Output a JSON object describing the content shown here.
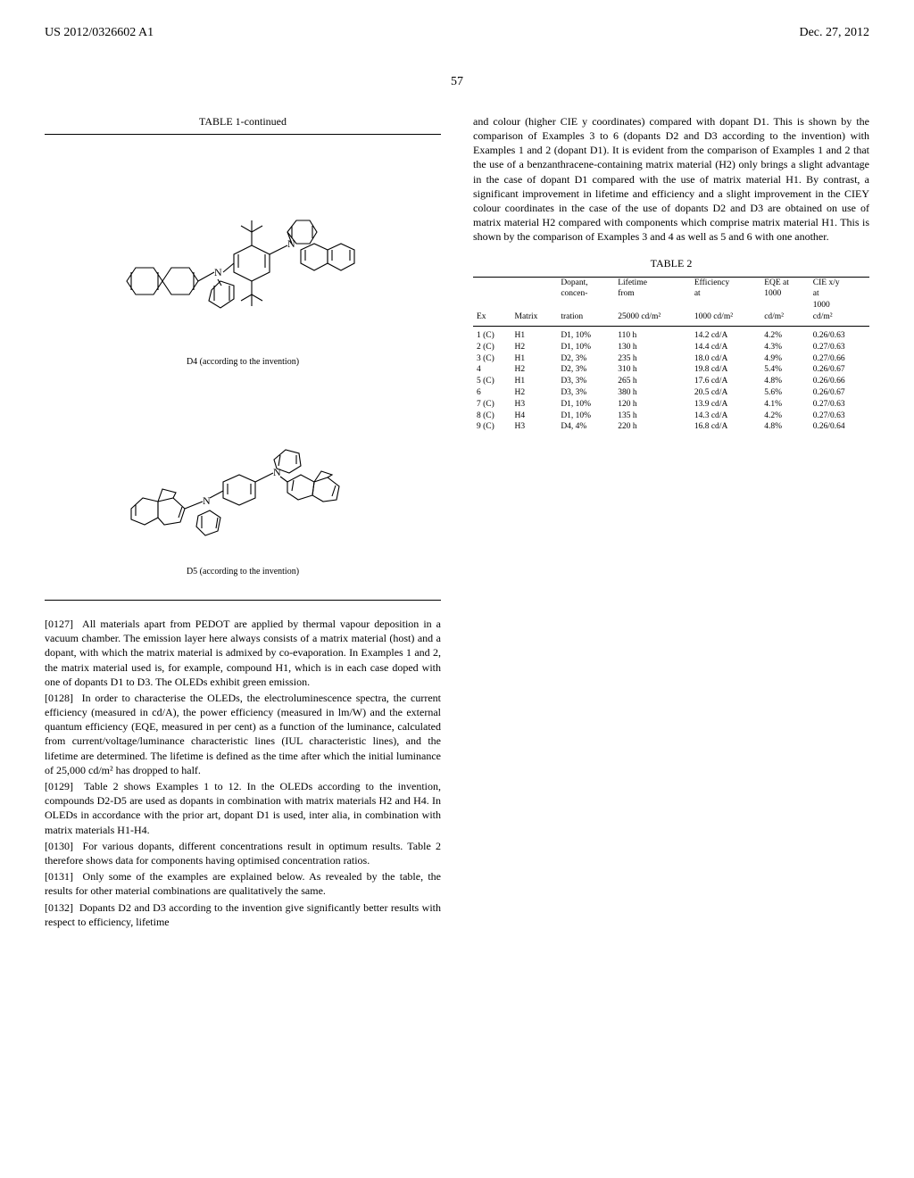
{
  "header": {
    "pub_number": "US 2012/0326602 A1",
    "date": "Dec. 27, 2012",
    "page_number": "57"
  },
  "table1": {
    "title": "TABLE 1-continued",
    "caption_d4": "D4 (according to the invention)",
    "caption_d5": "D5 (according to the invention)"
  },
  "paragraphs": {
    "p0127_num": "[0127]",
    "p0127": "All materials apart from PEDOT are applied by thermal vapour deposition in a vacuum chamber. The emission layer here always consists of a matrix material (host) and a dopant, with which the matrix material is admixed by co-evaporation. In Examples 1 and 2, the matrix material used is, for example, compound H1, which is in each case doped with one of dopants D1 to D3. The OLEDs exhibit green emission.",
    "p0128_num": "[0128]",
    "p0128": "In order to characterise the OLEDs, the electroluminescence spectra, the current efficiency (measured in cd/A), the power efficiency (measured in lm/W) and the external quantum efficiency (EQE, measured in per cent) as a function of the luminance, calculated from current/voltage/luminance characteristic lines (IUL characteristic lines), and the lifetime are determined. The lifetime is defined as the time after which the initial luminance of 25,000 cd/m² has dropped to half.",
    "p0129_num": "[0129]",
    "p0129": "Table 2 shows Examples 1 to 12. In the OLEDs according to the invention, compounds D2-D5 are used as dopants in combination with matrix materials H2 and H4. In OLEDs in accordance with the prior art, dopant D1 is used, inter alia, in combination with matrix materials H1-H4.",
    "p0130_num": "[0130]",
    "p0130": "For various dopants, different concentrations result in optimum results. Table 2 therefore shows data for components having optimised concentration ratios.",
    "p0131_num": "[0131]",
    "p0131": "Only some of the examples are explained below. As revealed by the table, the results for other material combinations are qualitatively the same.",
    "p0132_num": "[0132]",
    "p0132": "Dopants D2 and D3 according to the invention give significantly better results with respect to efficiency, lifetime",
    "right_para": "and colour (higher CIE y coordinates) compared with dopant D1. This is shown by the comparison of Examples 3 to 6 (dopants D2 and D3 according to the invention) with Examples 1 and 2 (dopant D1). It is evident from the comparison of Examples 1 and 2 that the use of a benzanthracene-containing matrix material (H2) only brings a slight advantage in the case of dopant D1 compared with the use of matrix material H1. By contrast, a significant improvement in lifetime and efficiency and a slight improvement in the CIEY colour coordinates in the case of the use of dopants D2 and D3 are obtained on use of matrix material H2 compared with components which comprise matrix material H1. This is shown by the comparison of Examples 3 and 4 as well as 5 and 6 with one another."
  },
  "table2": {
    "title": "TABLE 2",
    "headers": {
      "ex": "Ex",
      "matrix": "Matrix",
      "dopant1": "Dopant,",
      "dopant2": "concen-",
      "dopant3": "tration",
      "lifetime1": "Lifetime",
      "lifetime2": "from",
      "lifetime3": "25000 cd/m²",
      "eff1": "Efficiency",
      "eff2": "at",
      "eff3": "1000 cd/m²",
      "eqe1": "EQE at",
      "eqe2": "1000",
      "eqe3": "cd/m²",
      "cie1": "CIE x/y",
      "cie2": "at",
      "cie3": "1000",
      "cie4": "cd/m²"
    },
    "rows": [
      {
        "ex": "1 (C)",
        "matrix": "H1",
        "dopant": "D1, 10%",
        "lifetime": "110 h",
        "eff": "14.2 cd/A",
        "eqe": "4.2%",
        "cie": "0.26/0.63"
      },
      {
        "ex": "2 (C)",
        "matrix": "H2",
        "dopant": "D1, 10%",
        "lifetime": "130 h",
        "eff": "14.4 cd/A",
        "eqe": "4.3%",
        "cie": "0.27/0.63"
      },
      {
        "ex": "3 (C)",
        "matrix": "H1",
        "dopant": "D2, 3%",
        "lifetime": "235 h",
        "eff": "18.0 cd/A",
        "eqe": "4.9%",
        "cie": "0.27/0.66"
      },
      {
        "ex": "4",
        "matrix": "H2",
        "dopant": "D2, 3%",
        "lifetime": "310 h",
        "eff": "19.8 cd/A",
        "eqe": "5.4%",
        "cie": "0.26/0.67"
      },
      {
        "ex": "5 (C)",
        "matrix": "H1",
        "dopant": "D3, 3%",
        "lifetime": "265 h",
        "eff": "17.6 cd/A",
        "eqe": "4.8%",
        "cie": "0.26/0.66"
      },
      {
        "ex": "6",
        "matrix": "H2",
        "dopant": "D3, 3%",
        "lifetime": "380 h",
        "eff": "20.5 cd/A",
        "eqe": "5.6%",
        "cie": "0.26/0.67"
      },
      {
        "ex": "7 (C)",
        "matrix": "H3",
        "dopant": "D1, 10%",
        "lifetime": "120 h",
        "eff": "13.9 cd/A",
        "eqe": "4.1%",
        "cie": "0.27/0.63"
      },
      {
        "ex": "8 (C)",
        "matrix": "H4",
        "dopant": "D1, 10%",
        "lifetime": "135 h",
        "eff": "14.3 cd/A",
        "eqe": "4.2%",
        "cie": "0.27/0.63"
      },
      {
        "ex": "9 (C)",
        "matrix": "H3",
        "dopant": "D4, 4%",
        "lifetime": "220 h",
        "eff": "16.8 cd/A",
        "eqe": "4.8%",
        "cie": "0.26/0.64"
      }
    ]
  },
  "diagram_style": {
    "stroke": "#000000",
    "stroke_width": 1.1,
    "width_d4": 300,
    "height_d4": 230,
    "width_d5": 300,
    "height_d5": 220
  }
}
